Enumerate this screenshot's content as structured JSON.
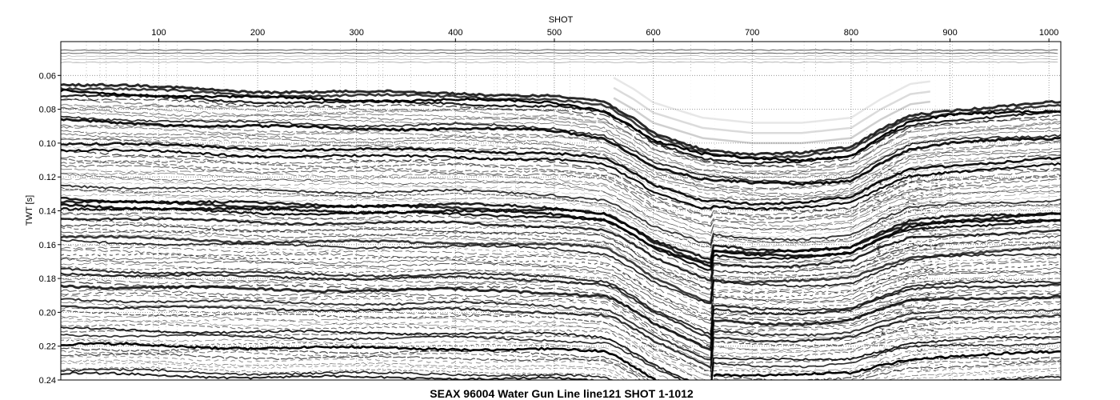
{
  "chart_data": {
    "type": "heatmap",
    "title": "SEAX 96004 Water Gun Line line121 SHOT 1-1012",
    "xlabel": "SHOT",
    "ylabel": "TWT [s]",
    "xlim": [
      1,
      1012
    ],
    "ylim": [
      0.24,
      0.04
    ],
    "y_inverted": true,
    "x_ticks": [
      100,
      200,
      300,
      400,
      500,
      600,
      700,
      800,
      900,
      1000
    ],
    "y_ticks": [
      0.06,
      0.08,
      0.1,
      0.12,
      0.14,
      0.16,
      0.18,
      0.2,
      0.22,
      0.24
    ],
    "grid": true,
    "grid_style": "dotted",
    "colormap": "grayscale wiggle-density (black = positive amplitude)",
    "seafloor_twt": {
      "shot": [
        1,
        50,
        100,
        200,
        300,
        400,
        500,
        550,
        580,
        600,
        650,
        700,
        750,
        800,
        830,
        860,
        900,
        950,
        1012
      ],
      "twt": [
        0.065,
        0.066,
        0.067,
        0.069,
        0.07,
        0.07,
        0.072,
        0.076,
        0.086,
        0.094,
        0.103,
        0.106,
        0.106,
        0.103,
        0.092,
        0.083,
        0.08,
        0.078,
        0.076
      ]
    }
  },
  "colors": {
    "background": "#ffffff",
    "ink": "#000000",
    "grid": "#555555"
  }
}
